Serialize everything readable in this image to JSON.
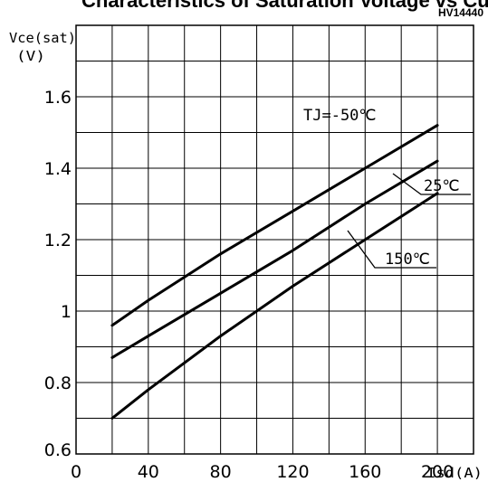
{
  "header": {
    "partial_title": "Characteristics of Saturation Voltage vs Current",
    "code": "HV14440"
  },
  "chart_data": {
    "type": "line",
    "xlabel": "Isd(A)",
    "ylabel_line1": "Vce(sat)",
    "ylabel_line2": "(V)",
    "xlim": [
      0,
      220
    ],
    "ylim": [
      0.6,
      1.8
    ],
    "x_ticks": [
      0,
      40,
      80,
      120,
      160,
      200
    ],
    "y_ticks": [
      0.8,
      1,
      1.2,
      1.4,
      1.6
    ],
    "y_tick_labels": [
      "0.8",
      "1",
      "1.2",
      "1.4",
      "1.6"
    ],
    "y_origin_label": "0.6",
    "grid": true,
    "series": [
      {
        "name": "TJ=-50℃",
        "x": [
          20,
          40,
          80,
          120,
          160,
          200
        ],
        "y": [
          0.96,
          1.03,
          1.16,
          1.28,
          1.4,
          1.52
        ]
      },
      {
        "name": "25℃",
        "x": [
          20,
          40,
          80,
          120,
          160,
          200
        ],
        "y": [
          0.87,
          0.93,
          1.05,
          1.17,
          1.3,
          1.42
        ]
      },
      {
        "name": "150℃",
        "x": [
          20,
          40,
          80,
          120,
          160,
          200
        ],
        "y": [
          0.7,
          0.78,
          0.93,
          1.07,
          1.2,
          1.33
        ]
      }
    ]
  }
}
